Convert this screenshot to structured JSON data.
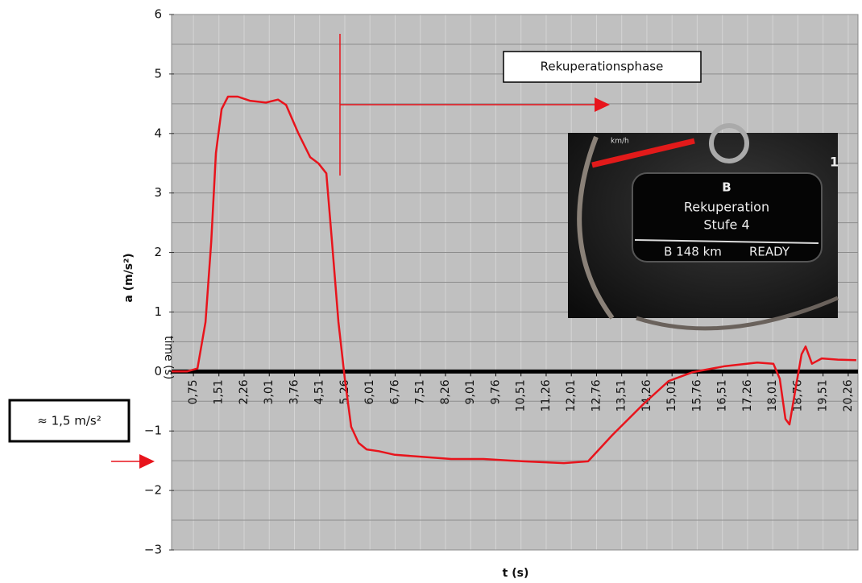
{
  "chart_data": {
    "type": "line",
    "y_label": "a (m/s²)",
    "x_label": "t (s)",
    "x_axis_title": "time (s)",
    "xlim": [
      0.1,
      20.55
    ],
    "ylim": [
      -3,
      6
    ],
    "yticks": [
      {
        "value": -3,
        "label": "−3"
      },
      {
        "value": -2,
        "label": "−2"
      },
      {
        "value": -1,
        "label": "−1"
      },
      0,
      1,
      2,
      3,
      4,
      5,
      6
    ],
    "xticks": [
      {
        "value": 0.75,
        "label": "0,75"
      },
      {
        "value": 1.51,
        "label": "1,51"
      },
      {
        "value": 2.26,
        "label": "2,26"
      },
      {
        "value": 3.01,
        "label": "3,01"
      },
      {
        "value": 3.76,
        "label": "3,76"
      },
      {
        "value": 4.51,
        "label": "4,51"
      },
      {
        "value": 5.26,
        "label": "5,26"
      },
      {
        "value": 6.01,
        "label": "6,01"
      },
      {
        "value": 6.76,
        "label": "6,76"
      },
      {
        "value": 7.51,
        "label": "7,51"
      },
      {
        "value": 8.26,
        "label": "8,26"
      },
      {
        "value": 9.01,
        "label": "9,01"
      },
      {
        "value": 9.76,
        "label": "9,76"
      },
      {
        "value": 10.51,
        "label": "10,51"
      },
      {
        "value": 11.26,
        "label": "11,26"
      },
      {
        "value": 12.01,
        "label": "12,01"
      },
      {
        "value": 12.76,
        "label": "12,76"
      },
      {
        "value": 13.51,
        "label": "13,51"
      },
      {
        "value": 14.26,
        "label": "14,26"
      },
      {
        "value": 15.01,
        "label": "15,01"
      },
      {
        "value": 15.76,
        "label": "15,76"
      },
      {
        "value": 16.51,
        "label": "16,51"
      },
      {
        "value": 17.26,
        "label": "17,26"
      },
      {
        "value": 18.01,
        "label": "18,01"
      },
      {
        "value": 18.76,
        "label": "18,76"
      },
      {
        "value": 19.51,
        "label": "19,51"
      },
      {
        "value": 20.26,
        "label": "20,26"
      }
    ],
    "grid": true,
    "minor_grid": true,
    "color": "#e8141c",
    "x": [
      0.1,
      0.56,
      0.87,
      1.11,
      1.28,
      1.42,
      1.59,
      1.78,
      2.07,
      2.43,
      2.91,
      3.27,
      3.51,
      3.87,
      4.23,
      4.47,
      4.71,
      4.88,
      5.07,
      5.26,
      5.45,
      5.67,
      5.91,
      6.27,
      6.75,
      7.47,
      8.43,
      9.39,
      10.59,
      11.79,
      12.51,
      13.23,
      14.19,
      14.91,
      15.63,
      16.59,
      17.55,
      18.03,
      18.22,
      18.39,
      18.51,
      18.7,
      18.87,
      18.99,
      19.18,
      19.47,
      19.95,
      20.5
    ],
    "values": [
      0,
      0,
      0.05,
      0.83,
      2.18,
      3.67,
      4.41,
      4.62,
      4.62,
      4.55,
      4.52,
      4.57,
      4.48,
      4.01,
      3.6,
      3.5,
      3.33,
      2.18,
      0.83,
      -0.12,
      -0.93,
      -1.2,
      -1.31,
      -1.34,
      -1.4,
      -1.43,
      -1.47,
      -1.47,
      -1.51,
      -1.54,
      -1.51,
      -1.07,
      -0.53,
      -0.16,
      -0.01,
      0.09,
      0.15,
      0.13,
      -0.12,
      -0.8,
      -0.89,
      -0.26,
      0.29,
      0.42,
      0.13,
      0.22,
      0.2,
      0.19
    ],
    "annotations": [
      "Rekuperationsphase",
      "≈ 1,5 m/s²"
    ],
    "inset": {
      "unit": "km/h",
      "mode": "B",
      "line1": "Rekuperation",
      "line2": "Stufe 4",
      "range": "B 148 km",
      "status": "READY",
      "edge": "1"
    }
  }
}
